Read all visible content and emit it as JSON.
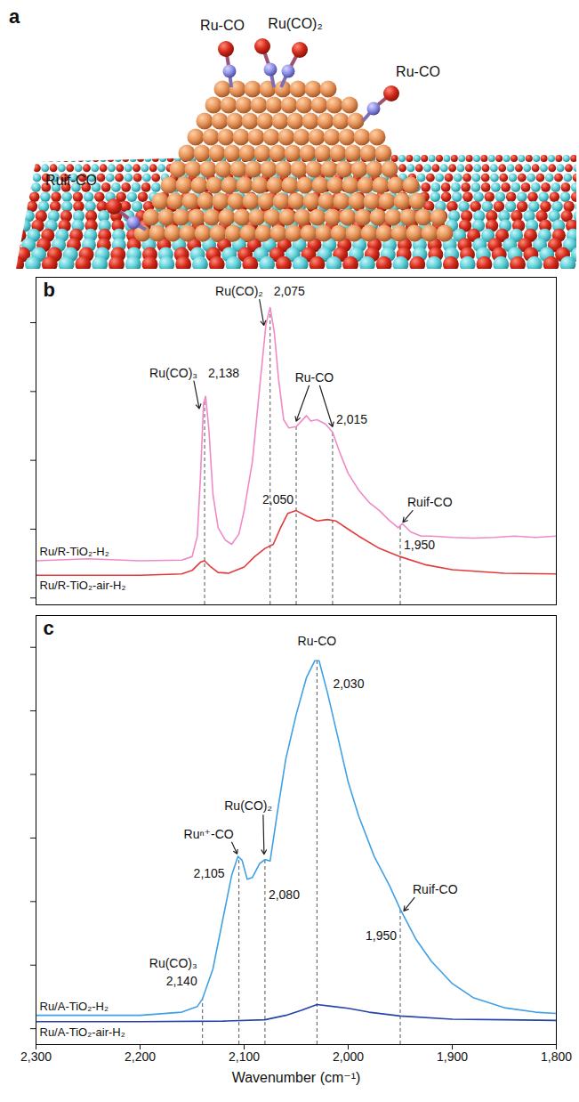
{
  "diagram": {
    "panel_label": "a",
    "labels": [
      "Ru-CO",
      "Ru(CO)₂",
      "Ru-CO",
      "Ruif-CO"
    ]
  },
  "chart_data": [
    {
      "panel_label": "b",
      "type": "line",
      "xlim": [
        2300,
        1800
      ],
      "ylim": [
        -0.1,
        4.66
      ],
      "yticks": [
        0,
        1,
        2,
        3,
        4
      ],
      "tick_labels": false,
      "series": [
        {
          "name": "Ru/R-TiO₂-H₂",
          "color": "#f08ac6",
          "x": [
            2300,
            2250,
            2200,
            2160,
            2150,
            2145,
            2142,
            2139,
            2137,
            2134,
            2130,
            2125,
            2118,
            2112,
            2105,
            2100,
            2092,
            2085,
            2079,
            2075,
            2071,
            2067,
            2062,
            2057,
            2050,
            2045,
            2040,
            2036,
            2030,
            2022,
            2015,
            2008,
            2000,
            1990,
            1980,
            1970,
            1960,
            1952,
            1948,
            1940,
            1930,
            1920,
            1900,
            1880,
            1860,
            1840,
            1820,
            1800
          ],
          "values": [
            0.54,
            0.57,
            0.54,
            0.55,
            0.6,
            0.9,
            1.75,
            2.83,
            2.93,
            2.47,
            1.51,
            1.02,
            0.84,
            0.78,
            0.93,
            1.27,
            1.99,
            3.07,
            3.98,
            4.22,
            3.86,
            3.19,
            2.59,
            2.47,
            2.49,
            2.57,
            2.65,
            2.57,
            2.59,
            2.53,
            2.41,
            2.11,
            1.81,
            1.57,
            1.39,
            1.27,
            1.12,
            1.02,
            1.08,
            0.96,
            0.9,
            0.9,
            0.88,
            0.87,
            0.88,
            0.9,
            0.88,
            0.9
          ]
        },
        {
          "name": "Ru/R-TiO₂-air-H₂",
          "color": "#e23b3b",
          "x": [
            2300,
            2200,
            2160,
            2150,
            2142,
            2138,
            2132,
            2125,
            2115,
            2100,
            2090,
            2080,
            2072,
            2065,
            2058,
            2050,
            2040,
            2030,
            2020,
            2012,
            2000,
            1990,
            1970,
            1950,
            1925,
            1900,
            1850,
            1800
          ],
          "values": [
            0.33,
            0.33,
            0.35,
            0.4,
            0.52,
            0.54,
            0.45,
            0.37,
            0.36,
            0.45,
            0.6,
            0.72,
            0.78,
            1.02,
            1.23,
            1.27,
            1.19,
            1.12,
            1.14,
            1.12,
            1.0,
            0.9,
            0.72,
            0.6,
            0.48,
            0.41,
            0.36,
            0.35
          ]
        }
      ],
      "markers": [
        {
          "x": 2138,
          "label": "2,138"
        },
        {
          "x": 2075,
          "label": "2,075"
        },
        {
          "x": 2050,
          "label": "2,050"
        },
        {
          "x": 2015,
          "label": "2,015"
        },
        {
          "x": 1950,
          "label": "1,950"
        }
      ],
      "species": [
        {
          "text": "Ru(CO)₃",
          "x": [
            2138
          ]
        },
        {
          "text": "Ru(CO)₂",
          "x": [
            2075
          ]
        },
        {
          "text": "Ru-CO",
          "x": [
            2050,
            2015
          ]
        },
        {
          "text": "Ruif-CO",
          "x": [
            1950
          ]
        }
      ]
    },
    {
      "panel_label": "c",
      "type": "line",
      "x_label": "Wavenumber (cm⁻¹)",
      "xlim": [
        2300,
        1800
      ],
      "xticks": [
        {
          "value": 2300,
          "label": "2,300"
        },
        {
          "value": 2200,
          "label": "2,200"
        },
        {
          "value": 2100,
          "label": "2,100"
        },
        {
          "value": 2000,
          "label": "2,000"
        },
        {
          "value": 1900,
          "label": "1,900"
        },
        {
          "value": 1800,
          "label": "1,800"
        }
      ],
      "ylim": [
        -0.25,
        6.5
      ],
      "yticks": [
        0,
        1,
        2,
        3,
        4,
        5,
        6
      ],
      "tick_labels": "x",
      "series": [
        {
          "name": "Ru/A-TiO₂-H₂",
          "color": "#3fa0e6",
          "x": [
            2300,
            2200,
            2160,
            2145,
            2140,
            2130,
            2120,
            2112,
            2106,
            2102,
            2097,
            2092,
            2085,
            2080,
            2075,
            2068,
            2060,
            2050,
            2040,
            2032,
            2028,
            2020,
            2010,
            2000,
            1990,
            1975,
            1960,
            1950,
            1935,
            1920,
            1900,
            1880,
            1850,
            1820,
            1800
          ],
          "values": [
            0.21,
            0.21,
            0.26,
            0.35,
            0.47,
            0.94,
            1.76,
            2.41,
            2.71,
            2.65,
            2.35,
            2.38,
            2.6,
            2.66,
            2.64,
            3.41,
            4.24,
            4.94,
            5.53,
            5.79,
            5.79,
            5.29,
            4.59,
            3.88,
            3.35,
            2.71,
            2.24,
            1.88,
            1.41,
            1.06,
            0.71,
            0.49,
            0.33,
            0.26,
            0.24
          ]
        },
        {
          "name": "Ru/A-TiO₂-air-H₂",
          "color": "#2444a8",
          "x": [
            2300,
            2200,
            2120,
            2080,
            2060,
            2045,
            2030,
            2015,
            2000,
            1980,
            1950,
            1900,
            1850,
            1800
          ],
          "values": [
            0.11,
            0.11,
            0.12,
            0.14,
            0.21,
            0.29,
            0.38,
            0.35,
            0.32,
            0.26,
            0.2,
            0.15,
            0.14,
            0.13
          ]
        }
      ],
      "markers": [
        {
          "x": 2140,
          "label": "2,140"
        },
        {
          "x": 2105,
          "label": "2,105"
        },
        {
          "x": 2080,
          "label": "2,080"
        },
        {
          "x": 2030,
          "label": "2,030"
        },
        {
          "x": 1950,
          "label": "1,950"
        }
      ],
      "species": [
        {
          "text": "Ru(CO)₃",
          "x": [
            2140
          ]
        },
        {
          "text": "Ruⁿ⁺-CO",
          "x": [
            2105
          ]
        },
        {
          "text": "Ru(CO)₂",
          "x": [
            2080
          ]
        },
        {
          "text": "Ru-CO",
          "x": [
            2030
          ]
        },
        {
          "text": "Ruif-CO",
          "x": [
            1950
          ]
        }
      ]
    }
  ]
}
